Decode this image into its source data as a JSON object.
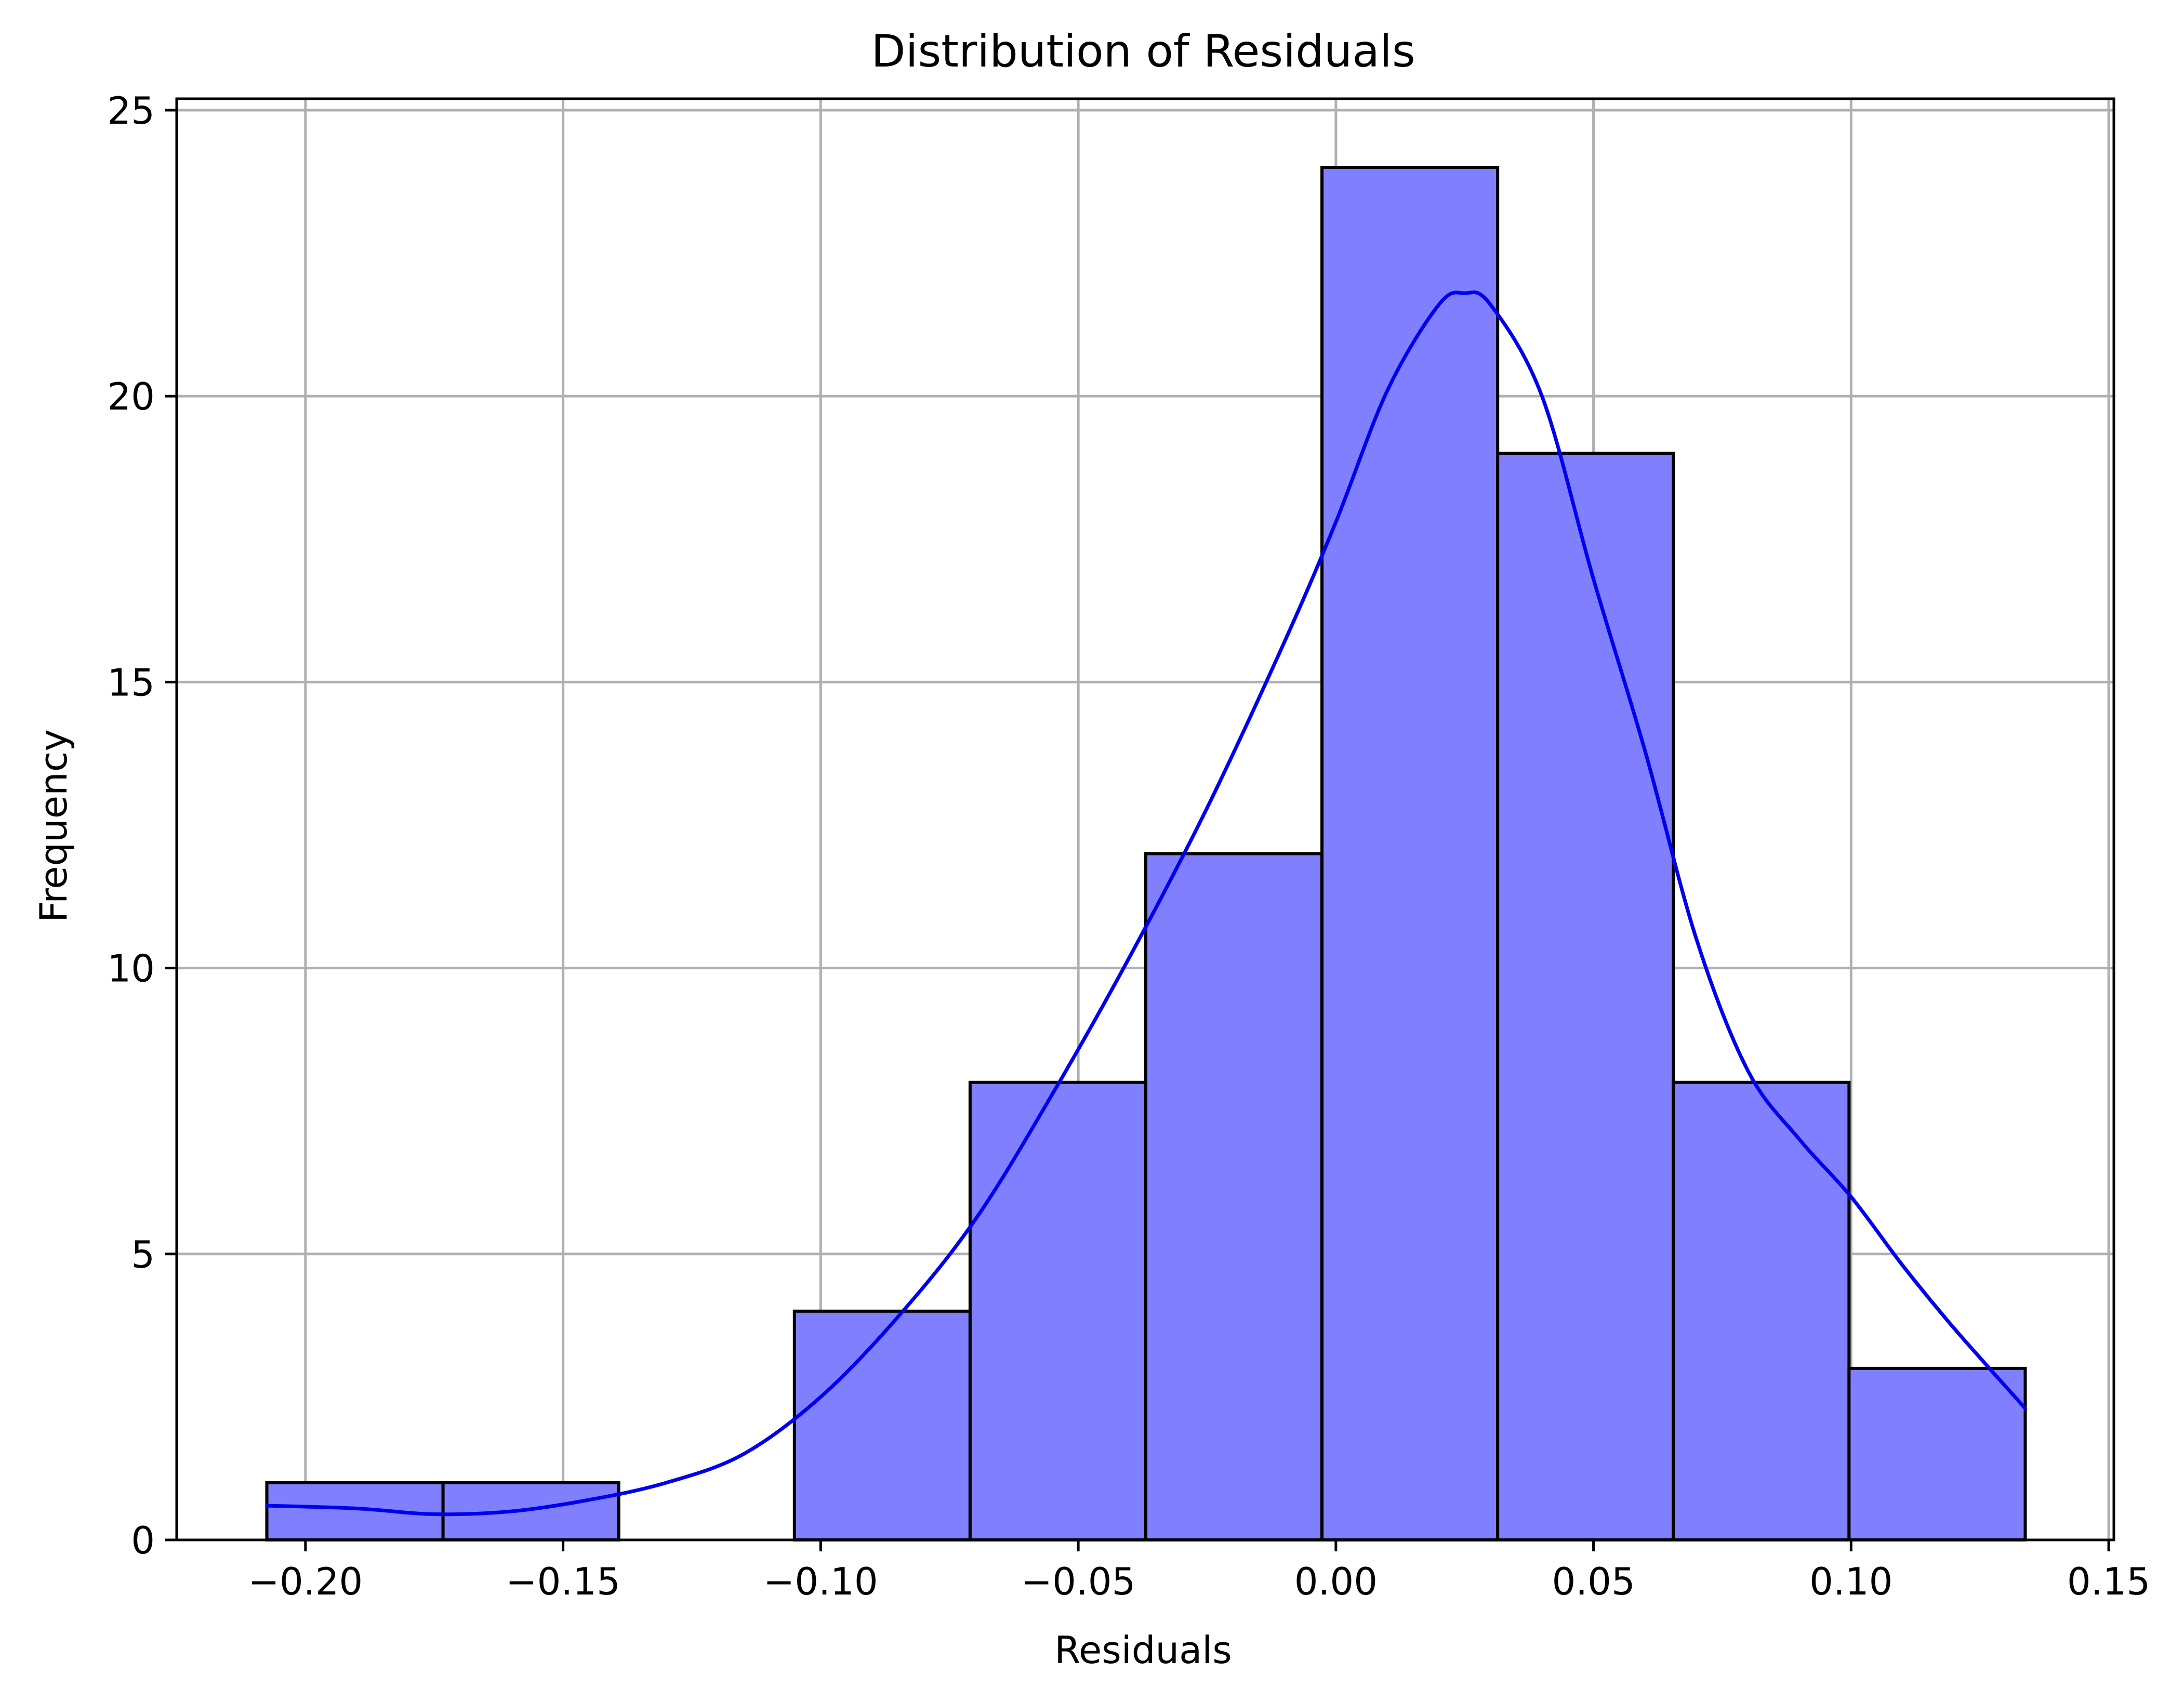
{
  "chart_data": {
    "type": "bar",
    "subtype": "histogram",
    "title": "Distribution of Residuals",
    "xlabel": "Residuals",
    "ylabel": "Frequency",
    "xlim": [
      -0.225,
      0.151
    ],
    "ylim": [
      0,
      25.2
    ],
    "grid": true,
    "x_ticks": [
      -0.2,
      -0.15,
      -0.1,
      -0.05,
      0.0,
      0.05,
      0.1,
      0.15
    ],
    "x_tick_labels": [
      "−0.20",
      "−0.15",
      "−0.10",
      "−0.05",
      "0.00",
      "0.05",
      "0.10",
      "0.15"
    ],
    "y_ticks": [
      0,
      5,
      10,
      15,
      20,
      25
    ],
    "y_tick_labels": [
      "0",
      "5",
      "10",
      "15",
      "20",
      "25"
    ],
    "bins": [
      {
        "x0": -0.2075,
        "x1": -0.1733,
        "count": 1
      },
      {
        "x0": -0.1733,
        "x1": -0.1392,
        "count": 1
      },
      {
        "x0": -0.1392,
        "x1": -0.1051,
        "count": 0
      },
      {
        "x0": -0.1051,
        "x1": -0.071,
        "count": 4
      },
      {
        "x0": -0.071,
        "x1": -0.0369,
        "count": 8
      },
      {
        "x0": -0.0369,
        "x1": -0.0027,
        "count": 12
      },
      {
        "x0": -0.0027,
        "x1": 0.0314,
        "count": 24
      },
      {
        "x0": 0.0314,
        "x1": 0.0655,
        "count": 19
      },
      {
        "x0": 0.0655,
        "x1": 0.0996,
        "count": 8
      },
      {
        "x0": 0.0996,
        "x1": 0.1338,
        "count": 3
      }
    ],
    "kde_curve": {
      "x": [
        -0.2075,
        -0.19,
        -0.175,
        -0.16,
        -0.145,
        -0.13,
        -0.115,
        -0.1,
        -0.085,
        -0.07,
        -0.055,
        -0.04,
        -0.025,
        -0.01,
        0.0,
        0.01,
        0.02,
        0.025,
        0.03,
        0.04,
        0.05,
        0.06,
        0.07,
        0.08,
        0.09,
        0.1,
        0.11,
        0.12,
        0.1338
      ],
      "y": [
        0.6,
        0.55,
        0.45,
        0.5,
        0.7,
        1.0,
        1.5,
        2.5,
        3.9,
        5.6,
        7.8,
        10.2,
        12.8,
        15.7,
        17.8,
        20.1,
        21.6,
        21.8,
        21.6,
        20.0,
        16.8,
        13.8,
        10.5,
        8.2,
        7.0,
        6.0,
        4.8,
        3.7,
        2.3
      ]
    },
    "bar_color": "#8080ff",
    "bar_edge_color": "#000000",
    "kde_color": "#0000ee"
  }
}
